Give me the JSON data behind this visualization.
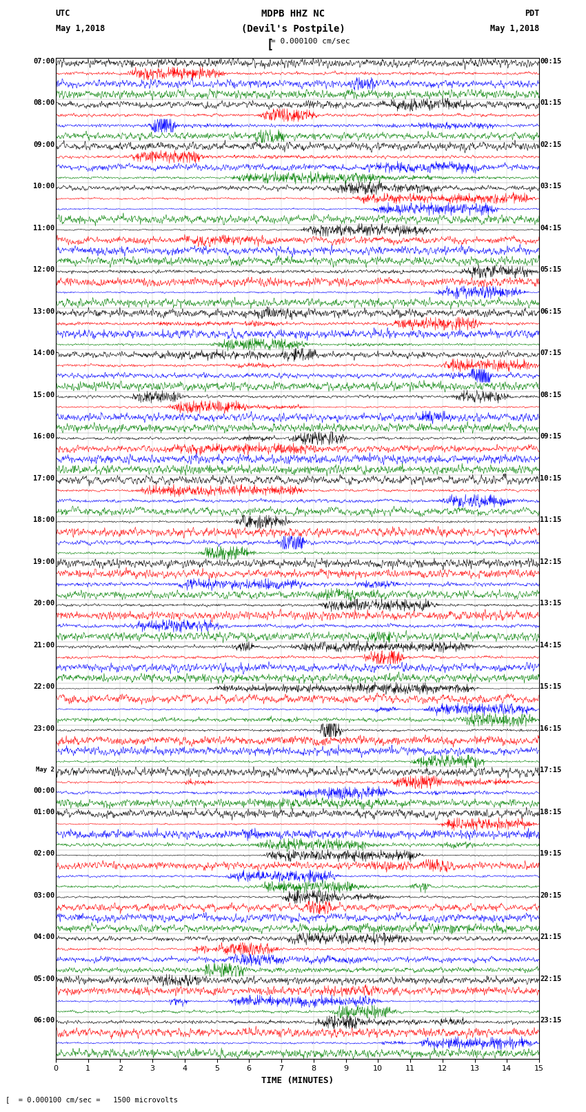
{
  "title_line1": "MDPB HHZ NC",
  "title_line2": "(Devil's Postpile)",
  "scale_label": "= 0.000100 cm/sec",
  "footer_label": "= 0.000100 cm/sec =   1500 microvolts",
  "xlabel": "TIME (MINUTES)",
  "utc_label": "UTC",
  "pdt_label": "PDT",
  "date_left": "May 1,2018",
  "date_right": "May 1,2018",
  "colors": [
    "black",
    "red",
    "blue",
    "green"
  ],
  "x_min": 0,
  "x_max": 15,
  "x_ticks": [
    0,
    1,
    2,
    3,
    4,
    5,
    6,
    7,
    8,
    9,
    10,
    11,
    12,
    13,
    14,
    15
  ],
  "bg_color": "#ffffff",
  "fig_width": 8.5,
  "fig_height": 16.13,
  "left_labels_utc": [
    "07:00",
    "08:00",
    "09:00",
    "10:00",
    "11:00",
    "12:00",
    "13:00",
    "14:00",
    "15:00",
    "16:00",
    "17:00",
    "18:00",
    "19:00",
    "20:00",
    "21:00",
    "22:00",
    "23:00",
    "May 2\n00:00",
    "01:00",
    "02:00",
    "03:00",
    "04:00",
    "05:00",
    "06:00"
  ],
  "right_labels_pdt": [
    "00:15",
    "01:15",
    "02:15",
    "03:15",
    "04:15",
    "05:15",
    "06:15",
    "07:15",
    "08:15",
    "09:15",
    "10:15",
    "11:15",
    "12:15",
    "13:15",
    "14:15",
    "15:15",
    "16:15",
    "17:15",
    "18:15",
    "19:15",
    "20:15",
    "21:15",
    "22:15",
    "23:15"
  ],
  "n_hours": 24,
  "n_colors": 4,
  "n_pts": 1500,
  "trace_amp": 0.42,
  "linewidth": 0.4
}
